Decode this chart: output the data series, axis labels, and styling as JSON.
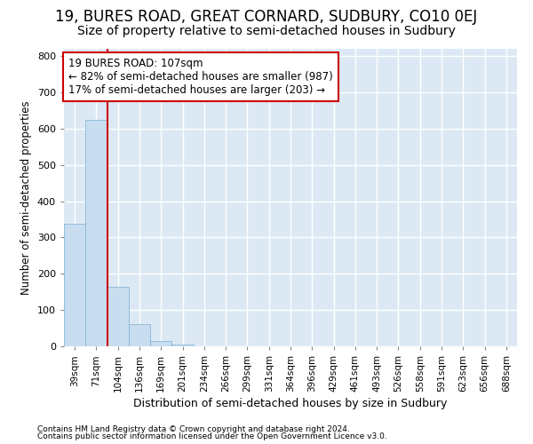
{
  "title": "19, BURES ROAD, GREAT CORNARD, SUDBURY, CO10 0EJ",
  "subtitle": "Size of property relative to semi-detached houses in Sudbury",
  "xlabel": "Distribution of semi-detached houses by size in Sudbury",
  "ylabel": "Number of semi-detached properties",
  "bar_color": "#c9ddf0",
  "bar_edge_color": "#7aafd4",
  "bar_categories": [
    "39sqm",
    "71sqm",
    "104sqm",
    "136sqm",
    "169sqm",
    "201sqm",
    "234sqm",
    "266sqm",
    "299sqm",
    "331sqm",
    "364sqm",
    "396sqm",
    "429sqm",
    "461sqm",
    "493sqm",
    "526sqm",
    "558sqm",
    "591sqm",
    "623sqm",
    "656sqm",
    "688sqm"
  ],
  "bar_values": [
    338,
    625,
    163,
    60,
    15,
    6,
    0,
    0,
    0,
    0,
    0,
    0,
    0,
    0,
    0,
    0,
    0,
    0,
    0,
    0,
    0
  ],
  "ylim": [
    0,
    820
  ],
  "yticks": [
    0,
    100,
    200,
    300,
    400,
    500,
    600,
    700,
    800
  ],
  "property_line_color": "#cc0000",
  "annotation_text": "19 BURES ROAD: 107sqm\n← 82% of semi-detached houses are smaller (987)\n17% of semi-detached houses are larger (203) →",
  "annotation_box_color": "#ffffff",
  "annotation_box_edge_color": "#cc0000",
  "footnote1": "Contains HM Land Registry data © Crown copyright and database right 2024.",
  "footnote2": "Contains public sector information licensed under the Open Government Licence v3.0.",
  "figure_bg": "#ffffff",
  "plot_bg": "#dce9f5",
  "grid_color": "#ffffff",
  "title_fontsize": 12,
  "subtitle_fontsize": 10,
  "bar_width": 0.9
}
